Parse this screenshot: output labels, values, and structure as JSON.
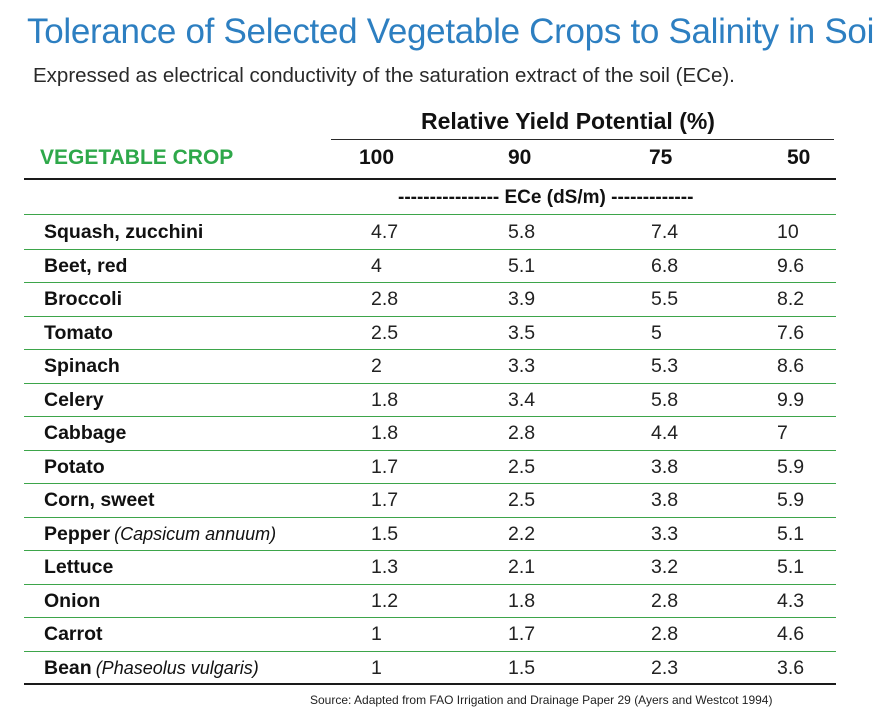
{
  "title": "Tolerance of Selected Vegetable Crops to Salinity in Soil",
  "subtitle": "Expressed as electrical conductivity of the saturation extract of the soil (ECe).",
  "table": {
    "group_header": "Relative Yield Potential (%)",
    "crop_header": "VEGETABLE CROP",
    "columns": [
      "100",
      "90",
      "75",
      "50"
    ],
    "units_row": "---------------- ECe (dS/m) -------------",
    "rows": [
      {
        "crop": "Squash, zucchini",
        "sci": "",
        "values": [
          "4.7",
          "5.8",
          "7.4",
          "10"
        ]
      },
      {
        "crop": "Beet, red",
        "sci": "",
        "values": [
          "4",
          "5.1",
          "6.8",
          "9.6"
        ]
      },
      {
        "crop": "Broccoli",
        "sci": "",
        "values": [
          "2.8",
          "3.9",
          "5.5",
          "8.2"
        ]
      },
      {
        "crop": "Tomato",
        "sci": "",
        "values": [
          "2.5",
          "3.5",
          "5",
          "7.6"
        ]
      },
      {
        "crop": "Spinach",
        "sci": "",
        "values": [
          "2",
          "3.3",
          "5.3",
          "8.6"
        ]
      },
      {
        "crop": "Celery",
        "sci": "",
        "values": [
          "1.8",
          "3.4",
          "5.8",
          "9.9"
        ]
      },
      {
        "crop": "Cabbage",
        "sci": "",
        "values": [
          "1.8",
          "2.8",
          "4.4",
          "7"
        ]
      },
      {
        "crop": "Potato",
        "sci": "",
        "values": [
          "1.7",
          "2.5",
          "3.8",
          "5.9"
        ]
      },
      {
        "crop": "Corn, sweet",
        "sci": "",
        "values": [
          "1.7",
          "2.5",
          "3.8",
          "5.9"
        ]
      },
      {
        "crop": "Pepper",
        "sci": "(Capsicum annuum)",
        "values": [
          "1.5",
          "2.2",
          "3.3",
          "5.1"
        ]
      },
      {
        "crop": "Lettuce",
        "sci": "",
        "values": [
          "1.3",
          "2.1",
          "3.2",
          "5.1"
        ]
      },
      {
        "crop": "Onion",
        "sci": "",
        "values": [
          "1.2",
          "1.8",
          "2.8",
          "4.3"
        ]
      },
      {
        "crop": "Carrot",
        "sci": "",
        "values": [
          "1",
          "1.7",
          "2.8",
          "4.6"
        ]
      },
      {
        "crop": "Bean",
        "sci": "(Phaseolus vulgaris)",
        "values": [
          "1",
          "1.5",
          "2.3",
          "3.6"
        ]
      }
    ]
  },
  "source": "Source: Adapted from FAO Irrigation and Drainage Paper 29 (Ayers and Westcot 1994)",
  "colors": {
    "title": "#2d7fc1",
    "crop_header": "#2ea84a",
    "row_rule": "#3da54a"
  }
}
